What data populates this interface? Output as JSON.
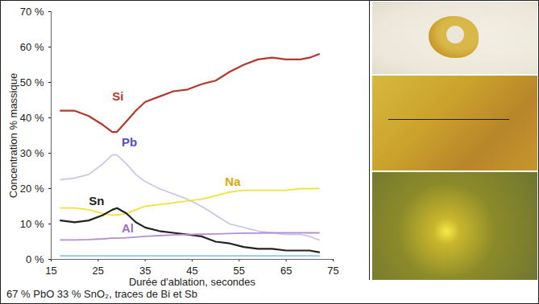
{
  "chart_data": {
    "type": "line",
    "x_label": "Durée d'ablation, secondes",
    "y_label": "Concentration % massique",
    "caption": "67 % PbO 33 % SnO₂, traces de Bi et Sb",
    "x": [
      17,
      20,
      23,
      26,
      28,
      29,
      31,
      33,
      35,
      38,
      41,
      44,
      47,
      50,
      53,
      56,
      59,
      62,
      65,
      68,
      70,
      72
    ],
    "series": [
      {
        "name": "Si",
        "color": "#b5382e",
        "values": [
          42,
          42,
          40.5,
          38,
          36,
          36,
          39,
          42,
          44.5,
          46,
          47.5,
          48,
          49.5,
          50.5,
          53,
          55,
          56.5,
          57,
          56.5,
          56.5,
          57,
          58
        ]
      },
      {
        "name": "Pb",
        "color": "#c9c8ea",
        "values": [
          22.5,
          23,
          24,
          27,
          29.5,
          29.5,
          27,
          24,
          22,
          20,
          18.5,
          17,
          15,
          12.5,
          10,
          9,
          8,
          7.5,
          7,
          7,
          6.5,
          5.5
        ]
      },
      {
        "name": "Na",
        "color": "#f2e23c",
        "values": [
          14.5,
          14.5,
          14,
          13,
          12.5,
          12.5,
          13,
          14,
          15,
          15.5,
          16,
          16.5,
          17,
          18,
          19,
          19.5,
          19.5,
          19.5,
          19.5,
          20,
          20,
          20
        ]
      },
      {
        "name": "Sn",
        "color": "#222222",
        "values": [
          11,
          10.5,
          11,
          12.5,
          14,
          14.5,
          13,
          10.5,
          9,
          8,
          7.5,
          7,
          6.5,
          5,
          4.5,
          3.5,
          3,
          3,
          2.5,
          2.5,
          2.5,
          2
        ]
      },
      {
        "name": "Al",
        "color": "#b58fd0",
        "values": [
          5.5,
          5.5,
          5.6,
          5.8,
          6,
          6,
          6.1,
          6.3,
          6.5,
          6.7,
          6.9,
          7,
          7.1,
          7.2,
          7.3,
          7.4,
          7.4,
          7.5,
          7.5,
          7.5,
          7.5,
          7.5
        ]
      },
      {
        "color": "#8cc6e8",
        "values": [
          1,
          1,
          1,
          1,
          1,
          1,
          1,
          1,
          1,
          1,
          1,
          1,
          1,
          1,
          1,
          1,
          1,
          1,
          1,
          1,
          1,
          1
        ]
      }
    ],
    "xlim": [
      15,
      75
    ],
    "xticks": [
      15,
      25,
      35,
      45,
      55,
      65,
      75
    ],
    "ylim": [
      0,
      70
    ],
    "yticks": [
      {
        "value": 0,
        "label": "0 %"
      },
      {
        "value": 10,
        "label": "10 %"
      },
      {
        "value": 20,
        "label": "20 %"
      },
      {
        "value": 30,
        "label": "30 %"
      },
      {
        "value": 40,
        "label": "40 %"
      },
      {
        "value": 50,
        "label": "50 %"
      },
      {
        "value": 60,
        "label": "60 %"
      },
      {
        "value": 70,
        "label": "70 %"
      }
    ],
    "grid": false
  }
}
